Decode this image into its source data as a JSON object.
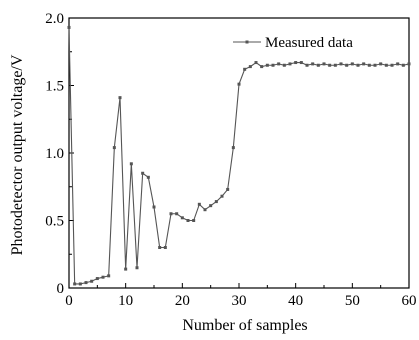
{
  "chart_data": {
    "type": "line",
    "xlabel": "Number of samples",
    "ylabel": "Photodetector output voltage/V",
    "xlim": [
      0,
      60
    ],
    "ylim": [
      0,
      2.0
    ],
    "xticks": [
      "0",
      "10",
      "20",
      "30",
      "40",
      "50",
      "60"
    ],
    "yticks": [
      "0",
      "0.5",
      "1.0",
      "1.5",
      "2.0"
    ],
    "grid": false,
    "legend_position": "top-right",
    "series": [
      {
        "name": "Measured data",
        "color": "#555555",
        "x": [
          0,
          1,
          2,
          3,
          4,
          5,
          6,
          7,
          8,
          9,
          10,
          11,
          12,
          13,
          14,
          15,
          16,
          17,
          18,
          19,
          20,
          21,
          22,
          23,
          24,
          25,
          26,
          27,
          28,
          29,
          30,
          31,
          32,
          33,
          34,
          35,
          36,
          37,
          38,
          39,
          40,
          41,
          42,
          43,
          44,
          45,
          46,
          47,
          48,
          49,
          50,
          51,
          52,
          53,
          54,
          55,
          56,
          57,
          58,
          59,
          60
        ],
        "y": [
          1.93,
          0.03,
          0.03,
          0.04,
          0.05,
          0.07,
          0.08,
          0.09,
          1.04,
          1.41,
          0.14,
          0.92,
          0.15,
          0.85,
          0.82,
          0.6,
          0.3,
          0.3,
          0.55,
          0.55,
          0.52,
          0.5,
          0.5,
          0.62,
          0.58,
          0.61,
          0.64,
          0.68,
          0.73,
          1.04,
          1.51,
          1.62,
          1.64,
          1.67,
          1.64,
          1.65,
          1.65,
          1.66,
          1.65,
          1.66,
          1.67,
          1.67,
          1.65,
          1.66,
          1.65,
          1.66,
          1.65,
          1.65,
          1.66,
          1.65,
          1.66,
          1.65,
          1.66,
          1.65,
          1.65,
          1.66,
          1.65,
          1.65,
          1.66,
          1.65,
          1.66
        ]
      }
    ]
  }
}
